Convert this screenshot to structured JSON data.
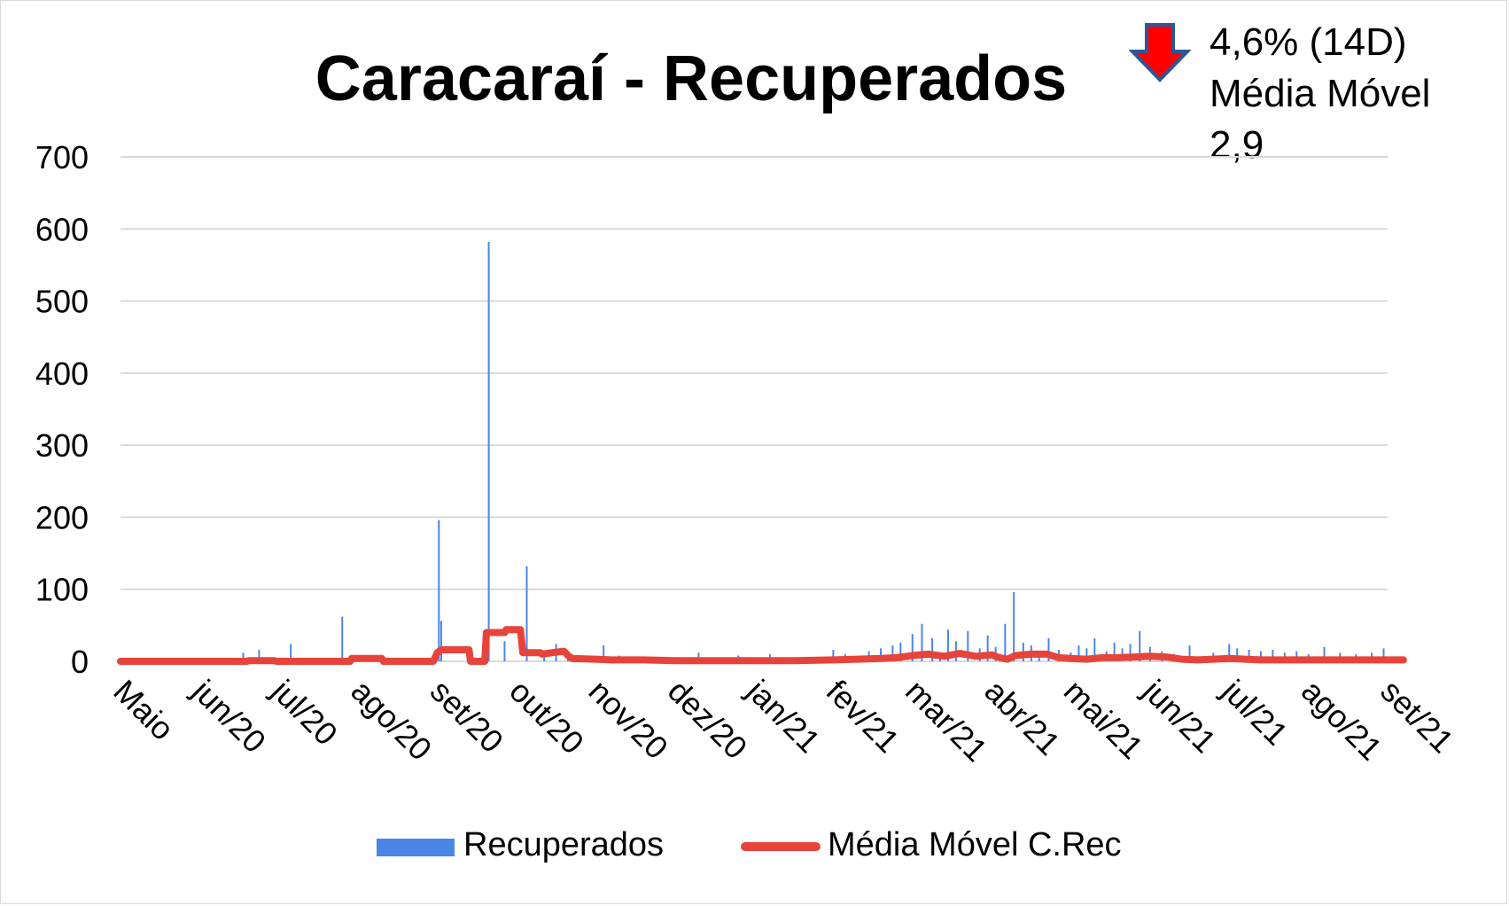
{
  "chart_data": {
    "type": "bar+line",
    "title": "Caracaraí - Recuperados",
    "annotation": {
      "line1": "4,6% (14D)",
      "line2": "Média Móvel",
      "line3": "2,9",
      "arrow": "down-arrow-icon",
      "arrow_color": "#ff0000",
      "arrow_outline": "#2f5597"
    },
    "ylim": [
      0,
      700
    ],
    "yticks": [
      0,
      100,
      200,
      300,
      400,
      500,
      600,
      700
    ],
    "xticks": [
      "Maio",
      "jun/20",
      "jul/20",
      "ago/20",
      "set/20",
      "out/20",
      "nov/20",
      "dez/20",
      "jan/21",
      "fev/21",
      "mar/21",
      "abr/21",
      "mai/21",
      "jun/21",
      "jul/21",
      "ago/21",
      "set/21"
    ],
    "grid": true,
    "legend_position": "bottom",
    "series": [
      {
        "name": "Recuperados",
        "type": "bar",
        "color": "#4a86e8",
        "points": [
          [
            1.55,
            12
          ],
          [
            1.75,
            16
          ],
          [
            2.15,
            24
          ],
          [
            2.8,
            62
          ],
          [
            4.02,
            196
          ],
          [
            4.05,
            56
          ],
          [
            4.65,
            582
          ],
          [
            4.85,
            28
          ],
          [
            5.13,
            132
          ],
          [
            5.35,
            12
          ],
          [
            5.5,
            24
          ],
          [
            5.65,
            8
          ],
          [
            6.1,
            22
          ],
          [
            6.3,
            8
          ],
          [
            7.3,
            12
          ],
          [
            7.8,
            8
          ],
          [
            8.2,
            10
          ],
          [
            8.5,
            4
          ],
          [
            9.0,
            16
          ],
          [
            9.15,
            10
          ],
          [
            9.35,
            8
          ],
          [
            9.45,
            14
          ],
          [
            9.6,
            18
          ],
          [
            9.75,
            22
          ],
          [
            9.85,
            26
          ],
          [
            10.0,
            38
          ],
          [
            10.12,
            52
          ],
          [
            10.25,
            32
          ],
          [
            10.35,
            12
          ],
          [
            10.45,
            44
          ],
          [
            10.55,
            28
          ],
          [
            10.7,
            42
          ],
          [
            10.85,
            18
          ],
          [
            10.95,
            36
          ],
          [
            11.05,
            20
          ],
          [
            11.17,
            52
          ],
          [
            11.28,
            96
          ],
          [
            11.4,
            26
          ],
          [
            11.5,
            22
          ],
          [
            11.6,
            14
          ],
          [
            11.72,
            32
          ],
          [
            11.85,
            16
          ],
          [
            12.0,
            12
          ],
          [
            12.1,
            22
          ],
          [
            12.2,
            18
          ],
          [
            12.3,
            32
          ],
          [
            12.45,
            14
          ],
          [
            12.55,
            26
          ],
          [
            12.65,
            18
          ],
          [
            12.75,
            24
          ],
          [
            12.87,
            42
          ],
          [
            13.0,
            20
          ],
          [
            13.15,
            14
          ],
          [
            13.3,
            10
          ],
          [
            13.5,
            22
          ],
          [
            13.8,
            12
          ],
          [
            14.0,
            24
          ],
          [
            14.1,
            18
          ],
          [
            14.25,
            16
          ],
          [
            14.4,
            14
          ],
          [
            14.55,
            16
          ],
          [
            14.7,
            12
          ],
          [
            14.85,
            14
          ],
          [
            15.0,
            10
          ],
          [
            15.2,
            20
          ],
          [
            15.4,
            12
          ],
          [
            15.6,
            10
          ],
          [
            15.8,
            12
          ],
          [
            15.95,
            18
          ]
        ]
      },
      {
        "name": "Média Móvel C.Rec",
        "type": "line",
        "color": "#e8433a",
        "points": [
          [
            0,
            0
          ],
          [
            1.6,
            0
          ],
          [
            1.62,
            1
          ],
          [
            1.95,
            1
          ],
          [
            1.97,
            0
          ],
          [
            2.9,
            0
          ],
          [
            2.92,
            4
          ],
          [
            3.3,
            4
          ],
          [
            3.32,
            0
          ],
          [
            3.95,
            0
          ],
          [
            4.0,
            12
          ],
          [
            4.05,
            16
          ],
          [
            4.4,
            16
          ],
          [
            4.42,
            0
          ],
          [
            4.6,
            0
          ],
          [
            4.62,
            40
          ],
          [
            4.85,
            40
          ],
          [
            4.87,
            44
          ],
          [
            5.05,
            44
          ],
          [
            5.08,
            12
          ],
          [
            5.3,
            12
          ],
          [
            5.32,
            10
          ],
          [
            5.45,
            12
          ],
          [
            5.6,
            14
          ],
          [
            5.65,
            8
          ],
          [
            5.7,
            4
          ],
          [
            6.0,
            3
          ],
          [
            6.2,
            2
          ],
          [
            6.6,
            2
          ],
          [
            7.0,
            1
          ],
          [
            7.5,
            1
          ],
          [
            8.0,
            1
          ],
          [
            8.5,
            1
          ],
          [
            9.0,
            2
          ],
          [
            9.3,
            3
          ],
          [
            9.6,
            4
          ],
          [
            9.8,
            5
          ],
          [
            10.0,
            8
          ],
          [
            10.2,
            10
          ],
          [
            10.4,
            7
          ],
          [
            10.6,
            11
          ],
          [
            10.8,
            7
          ],
          [
            11.0,
            9
          ],
          [
            11.1,
            5
          ],
          [
            11.2,
            3
          ],
          [
            11.3,
            8
          ],
          [
            11.5,
            10
          ],
          [
            11.7,
            10
          ],
          [
            11.85,
            5
          ],
          [
            12.0,
            4
          ],
          [
            12.2,
            3
          ],
          [
            12.4,
            5
          ],
          [
            12.6,
            5
          ],
          [
            12.8,
            6
          ],
          [
            13.0,
            7
          ],
          [
            13.2,
            6
          ],
          [
            13.4,
            3
          ],
          [
            13.6,
            2
          ],
          [
            13.8,
            3
          ],
          [
            14.0,
            4
          ],
          [
            14.2,
            3
          ],
          [
            14.4,
            2
          ],
          [
            14.6,
            2
          ],
          [
            14.8,
            2
          ],
          [
            15.0,
            2
          ],
          [
            15.4,
            2
          ],
          [
            15.8,
            2
          ],
          [
            16.2,
            2
          ]
        ]
      }
    ]
  }
}
